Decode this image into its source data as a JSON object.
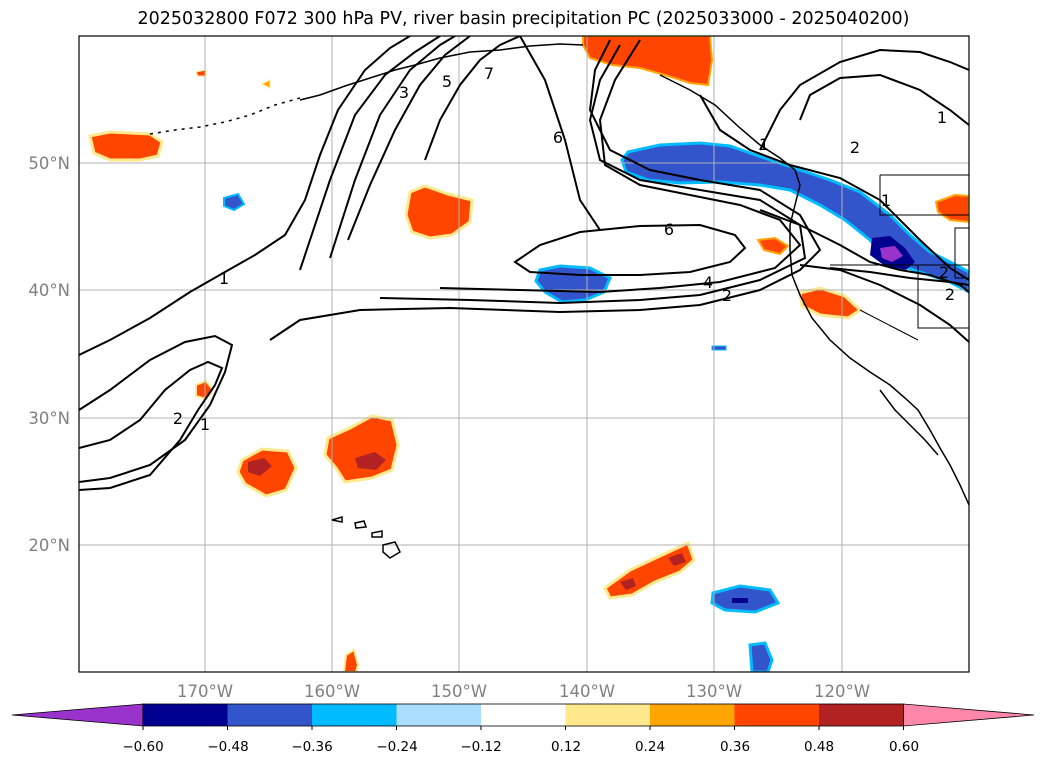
{
  "title": "2025032800 F072 300 hPa PV, river basin precipitation PC (2025033000 - 2025040200)",
  "lat_labels": [
    "50°N",
    "40°N",
    "30°N",
    "20°N"
  ],
  "lon_labels": [
    "170°W",
    "160°W",
    "150°W",
    "140°W",
    "130°W",
    "120°W"
  ],
  "pv_contour_labels": [
    "1",
    "2",
    "3",
    "5",
    "7",
    "6",
    "6",
    "4",
    "2",
    "1",
    "2",
    "1",
    "1",
    "2",
    "2",
    "1"
  ],
  "colorbar": {
    "colors": [
      "#9933cc",
      "#000090",
      "#3355cc",
      "#00bbff",
      "#aaddff",
      "#ffffff",
      "#ffe98c",
      "#ffa500",
      "#ff4500",
      "#b22222",
      "#ff88aa"
    ],
    "tick_labels": [
      "−0.60",
      "−0.48",
      "−0.36",
      "−0.24",
      "−0.12",
      "0.12",
      "0.24",
      "0.36",
      "0.48",
      "0.60"
    ]
  }
}
